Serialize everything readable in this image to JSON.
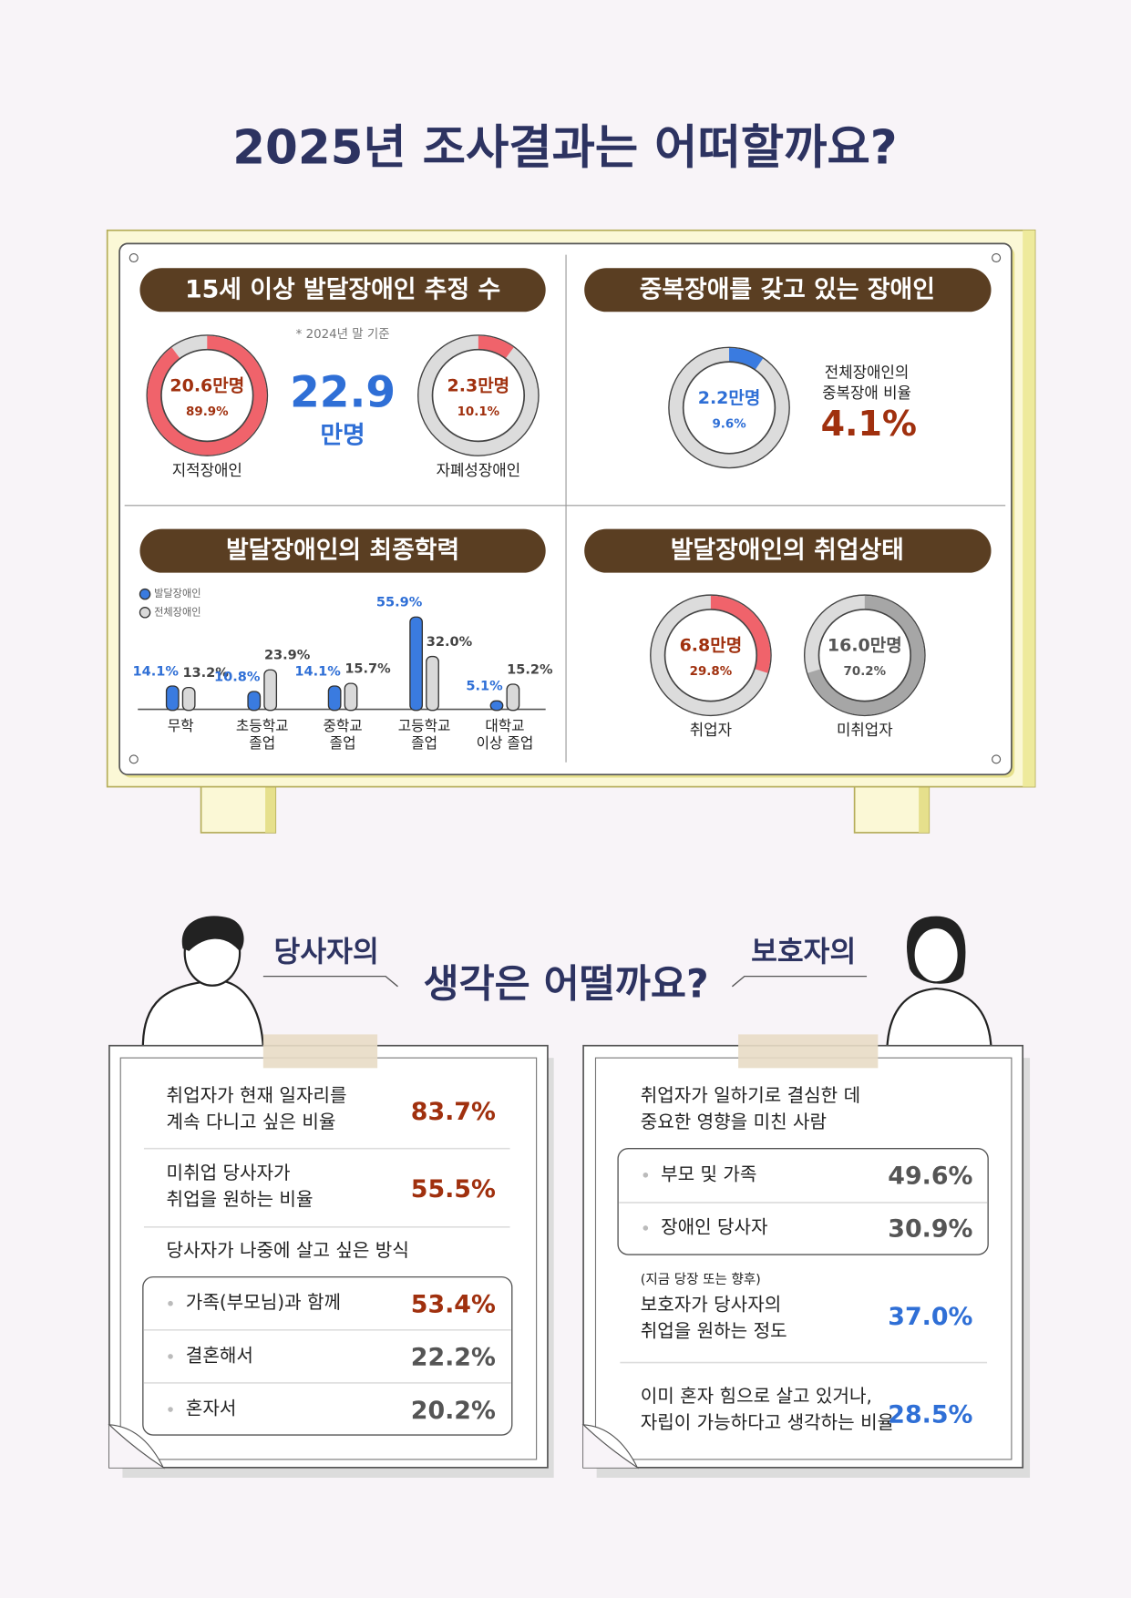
{
  "title": "2025년 조사결과는 어떠할까요?",
  "panels": [
    "15세 이상 발달장애인 추정 수",
    "중복장애를 갖고 있는 장애인",
    "발달장애인의 최종학력",
    "발달장애인의 취업상태"
  ],
  "estimate": {
    "note": "* 2024년 말 기준",
    "total": 22.9,
    "unit": "만명"
  },
  "duplicate": {
    "caption": [
      "전체장애인의",
      "중복장애 비율"
    ],
    "rate": "4.1%"
  },
  "chart_data": [
    {
      "type": "donut",
      "categories": [
        "지적장애인"
      ],
      "values": [
        89.9
      ],
      "value_labels": [
        "89.9%"
      ],
      "count_labels": [
        "20.6만명"
      ],
      "color": "#f0636b",
      "label_color": "#a0300e"
    },
    {
      "type": "donut",
      "categories": [
        "자폐성장애인"
      ],
      "values": [
        10.1
      ],
      "value_labels": [
        "10.1%"
      ],
      "count_labels": [
        "2.3만명"
      ],
      "color": "#f0636b",
      "label_color": "#a0300e"
    },
    {
      "type": "donut",
      "categories": [
        null
      ],
      "values": [
        9.6
      ],
      "value_labels": [
        "9.6%"
      ],
      "count_labels": [
        "2.2만명"
      ],
      "color": "#3a7be0",
      "label_color": "#2f6fd6"
    },
    {
      "type": "bar",
      "categories": [
        [
          "무학"
        ],
        [
          "초등학교",
          "졸업"
        ],
        [
          "중학교",
          "졸업"
        ],
        [
          "고등학교",
          "졸업"
        ],
        [
          "대학교",
          "이상 졸업"
        ]
      ],
      "series": [
        {
          "name": "발달장애인",
          "color": "#3a7be0",
          "values": [
            14.1,
            10.8,
            14.1,
            55.9,
            5.1
          ],
          "value_labels": [
            "14.1%",
            "10.8%",
            "14.1%",
            "55.9%",
            "5.1%"
          ]
        },
        {
          "name": "전체장애인",
          "color": "#d9d9d9",
          "values": [
            13.2,
            23.9,
            15.7,
            32.0,
            15.2
          ],
          "value_labels": [
            "13.2%",
            "23.9%",
            "15.7%",
            "32.0%",
            "15.2%"
          ]
        }
      ]
    },
    {
      "type": "donut",
      "categories": [
        "취업자"
      ],
      "values": [
        29.8
      ],
      "value_labels": [
        "29.8%"
      ],
      "count_labels": [
        "6.8만명"
      ],
      "color": "#f0636b",
      "label_color": "#a0300e"
    },
    {
      "type": "donut",
      "categories": [
        "미취업자"
      ],
      "values": [
        70.2
      ],
      "value_labels": [
        "70.2%"
      ],
      "count_labels": [
        "16.0만명"
      ],
      "color": "#a6a6a6",
      "label_color": "#555555"
    }
  ],
  "opinion": {
    "self_label": "당사자의",
    "heading": "생각은 어떨까요?",
    "guardian_label": "보호자의",
    "self": {
      "items": [
        {
          "lines": [
            "취업자가 현재 일자리를",
            "계속 다니고 싶은 비율"
          ],
          "value": "83.7%"
        },
        {
          "lines": [
            "미취업 당사자가",
            "취업을 원하는 비율"
          ],
          "value": "55.5%"
        }
      ],
      "wish": {
        "title": "당사자가 나중에 살고 싶은 방식",
        "rows": [
          {
            "label": "가족(부모님)과 함께",
            "value": "53.4%"
          },
          {
            "label": "결혼해서",
            "value": "22.2%"
          },
          {
            "label": "혼자서",
            "value": "20.2%"
          }
        ]
      }
    },
    "guardian": {
      "influence": {
        "lines": [
          "취업자가 일하기로 결심한 데",
          "중요한 영향을 미친 사람"
        ],
        "rows": [
          {
            "label": "부모 및 가족",
            "value": "49.6%"
          },
          {
            "label": "장애인 당사자",
            "value": "30.9%"
          }
        ]
      },
      "items": [
        {
          "note": "(지금 당장 또는 향후)",
          "lines": [
            "보호자가 당사자의",
            "취업을 원하는 정도"
          ],
          "value": "37.0%"
        },
        {
          "lines": [
            "이미 혼자 힘으로 살고 있거나,",
            "자립이 가능하다고 생각하는 비율"
          ],
          "value": "28.5%"
        }
      ]
    }
  }
}
